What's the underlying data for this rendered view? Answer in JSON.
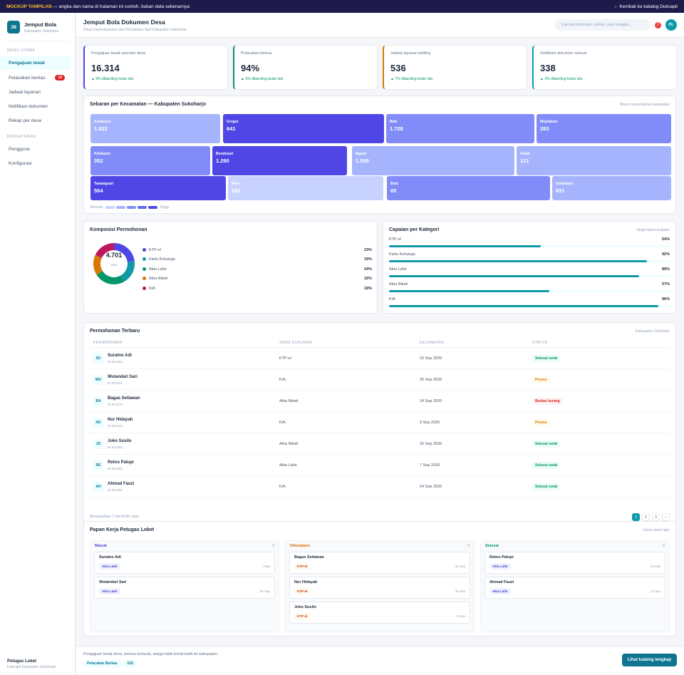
{
  "banner": {
    "tag": "MOCKUP TAMPILAN",
    "note": "— angka dan nama di halaman ini contoh, bukan data sebenarnya",
    "back_link": "← Kembali ke katalog Dukcapil"
  },
  "brand": {
    "initials": "JB",
    "name": "Jemput Bola",
    "region": "Kabupaten Sukoharjo"
  },
  "sidebar": {
    "section_main": "MENU UTAMA",
    "main_items": [
      {
        "label": "Pengajuan lewat",
        "active": true,
        "badge": ""
      },
      {
        "label": "Pelacakan berkas",
        "active": false,
        "badge": "19"
      },
      {
        "label": "Jadwal layanan",
        "active": false,
        "badge": ""
      },
      {
        "label": "Notifikasi dokumen",
        "active": false,
        "badge": ""
      },
      {
        "label": "Rekap per desa",
        "active": false,
        "badge": ""
      }
    ],
    "section_settings": "PENGATURAN",
    "settings_items": [
      {
        "label": "Pengguna"
      },
      {
        "label": "Konfigurasi"
      }
    ],
    "user_name": "Petugas Loket",
    "user_role": "Dukcapil Kabupaten Sukoharjo"
  },
  "header": {
    "title": "Jemput Bola Dokumen Desa",
    "subtitle": "Dinas Kependudukan dan Pencatatan Sipil Kabupaten Sukoharjo",
    "search_placeholder": "Cari permohonan, nomor, atau tanggal...",
    "notif_count": "7",
    "avatar": "PL"
  },
  "kpis": [
    {
      "label": "Pengajuan lewat operator desa",
      "value": "16.314",
      "delta": "▲ 9% dibanding bulan lalu",
      "color": "#4f46e5"
    },
    {
      "label": "Pelacakan berkas",
      "value": "94%",
      "delta": "▲ 6% dibanding bulan lalu",
      "color": "#059669"
    },
    {
      "label": "Jadwal layanan keliling",
      "value": "536",
      "delta": "▲ 7% dibanding bulan lalu",
      "color": "#d97706"
    },
    {
      "label": "Notifikasi dokumen selesai",
      "value": "338",
      "delta": "▲ 3% dibanding bulan lalu",
      "color": "#0e9aa7"
    }
  ],
  "treemap": {
    "title": "Sebaran per Kecamatan — Kabupaten Sukoharjo",
    "note": "Warna menunjukkan kepadatan",
    "legend_low": "Rendah",
    "legend_high": "Tinggi",
    "scale_colors": [
      "#c7d2fe",
      "#a5b4fc",
      "#818cf8",
      "#6366f1",
      "#4f46e5"
    ],
    "rows": [
      [
        {
          "name": "Kartasura",
          "value": "1.022",
          "level": 2
        },
        {
          "name": "Grogol",
          "value": "641",
          "level": 5
        },
        {
          "name": "Baki",
          "value": "1.728",
          "level": 3
        },
        {
          "name": "Mojolaban",
          "value": "283",
          "level": 3
        }
      ],
      [
        {
          "name": "Polokarto",
          "value": "352",
          "level": 3
        },
        {
          "name": "Bendosari",
          "value": "1.290",
          "level": 5
        },
        {
          "name": "Nguter",
          "value": "1.559",
          "level": 2
        },
        {
          "name": "Gatak",
          "value": "121",
          "level": 2
        }
      ],
      [
        {
          "name": "Tawangsari",
          "value": "564",
          "level": 5
        },
        {
          "name": "Weru",
          "value": "292",
          "level": 1
        },
        {
          "name": "Bulu",
          "value": "65",
          "level": 3
        },
        {
          "name": "Sukoharjo",
          "value": "831",
          "level": 2
        }
      ]
    ]
  },
  "composition": {
    "title": "Komposisi Permohonan",
    "total": "4.701",
    "total_label": "total",
    "items": [
      {
        "label": "KTP-el",
        "pct": "23%",
        "value": 23,
        "color": "#4f46e5"
      },
      {
        "label": "Kartu Keluarga",
        "pct": "19%",
        "value": 19,
        "color": "#0e9aa7"
      },
      {
        "label": "Akta Lahir",
        "pct": "24%",
        "value": 24,
        "color": "#059669"
      },
      {
        "label": "Akta Nikah",
        "pct": "16%",
        "value": 16,
        "color": "#d97706"
      },
      {
        "label": "KIA",
        "pct": "18%",
        "value": 18,
        "color": "#be185d"
      }
    ]
  },
  "achievement": {
    "title": "Capaian per Kategori",
    "note": "Target tahun berjalan",
    "items": [
      {
        "label": "KTP-el",
        "pct": "54%",
        "value": 54
      },
      {
        "label": "Kartu Keluarga",
        "pct": "92%",
        "value": 92
      },
      {
        "label": "Akta Lahir",
        "pct": "89%",
        "value": 89
      },
      {
        "label": "Akta Nikah",
        "pct": "57%",
        "value": 57
      },
      {
        "label": "KIA",
        "pct": "96%",
        "value": 96
      }
    ]
  },
  "table": {
    "title": "Permohonan Terbaru",
    "note": "Kabupaten Sukoharjo",
    "columns": [
      "PERMOHONAN",
      "JENIS DOKUMEN",
      "KECAMATAN",
      "STATUS"
    ],
    "rows": [
      {
        "ini": "SU",
        "name": "Suratno Adi",
        "id": "ID 001234",
        "doc": "KTP-el",
        "date": "16 Sep 2026",
        "status": "Selesai cetak",
        "kind": "ok"
      },
      {
        "ini": "WU",
        "name": "Wulandari Sari",
        "id": "ID 001241",
        "doc": "KIA",
        "date": "25 Sep 2026",
        "status": "Proses",
        "kind": "warn"
      },
      {
        "ini": "BA",
        "name": "Bagas Setiawan",
        "id": "ID 001278",
        "doc": "Akta Nikah",
        "date": "24 Sep 2026",
        "status": "Berkas kurang",
        "kind": "bad"
      },
      {
        "ini": "NU",
        "name": "Nur Hidayah",
        "id": "ID 001315",
        "doc": "KIA",
        "date": "9 Sep 2026",
        "status": "Proses",
        "kind": "warn"
      },
      {
        "ini": "JO",
        "name": "Joko Susilo",
        "id": "ID 001352",
        "doc": "Akta Nikah",
        "date": "20 Sep 2026",
        "status": "Selesai cetak",
        "kind": "ok"
      },
      {
        "ini": "RE",
        "name": "Retno Palupi",
        "id": "ID 001389",
        "doc": "Akta Lahir",
        "date": "7 Sep 2026",
        "status": "Selesai cetak",
        "kind": "ok"
      },
      {
        "ini": "AH",
        "name": "Ahmad Fauzi",
        "id": "ID 001426",
        "doc": "KIA",
        "date": "24 Sep 2026",
        "status": "Selesai cetak",
        "kind": "ok"
      }
    ],
    "footer": "Menampilkan 7 dari 8.081 data",
    "pages": [
      "1",
      "2",
      "3",
      "›"
    ]
  },
  "board": {
    "title": "Papan Kerja Petugas Loket",
    "note": "Geser antar lajur",
    "columns": [
      {
        "title": "Masuk",
        "count": "2",
        "color": "#4f46e5",
        "cards": [
          {
            "name": "Suratno Adi",
            "tag": "Akta Lahir",
            "date": "1 Sep"
          },
          {
            "name": "Wulandari Sari",
            "tag": "Akta Lahir",
            "date": "20 Sep"
          }
        ]
      },
      {
        "title": "Dikerjakan",
        "count": "3",
        "color": "#d97706",
        "cards": [
          {
            "name": "Bagas Setiawan",
            "tag": "KTP-el",
            "date": "15 Sep"
          },
          {
            "name": "Nur Hidayah",
            "tag": "KTP-el",
            "date": "16 Sep"
          },
          {
            "name": "Joko Susilo",
            "tag": "KTP-el",
            "date": "9 Sep"
          }
        ]
      },
      {
        "title": "Selesai",
        "count": "2",
        "color": "#059669",
        "cards": [
          {
            "name": "Retno Palupi",
            "tag": "Akta Lahir",
            "date": "20 Sep"
          },
          {
            "name": "Ahmad Fauzi",
            "tag": "Akta Lahir",
            "date": "14 Sep"
          }
        ]
      }
    ]
  },
  "footer": {
    "text": "Pengajuan lewat desa, berkas terlacak, warga tidak bolak-balik ke kabupaten.",
    "chips": [
      "Pelacakan Berkas",
      "GIS"
    ],
    "cta": "Lihat katalog lengkap"
  }
}
